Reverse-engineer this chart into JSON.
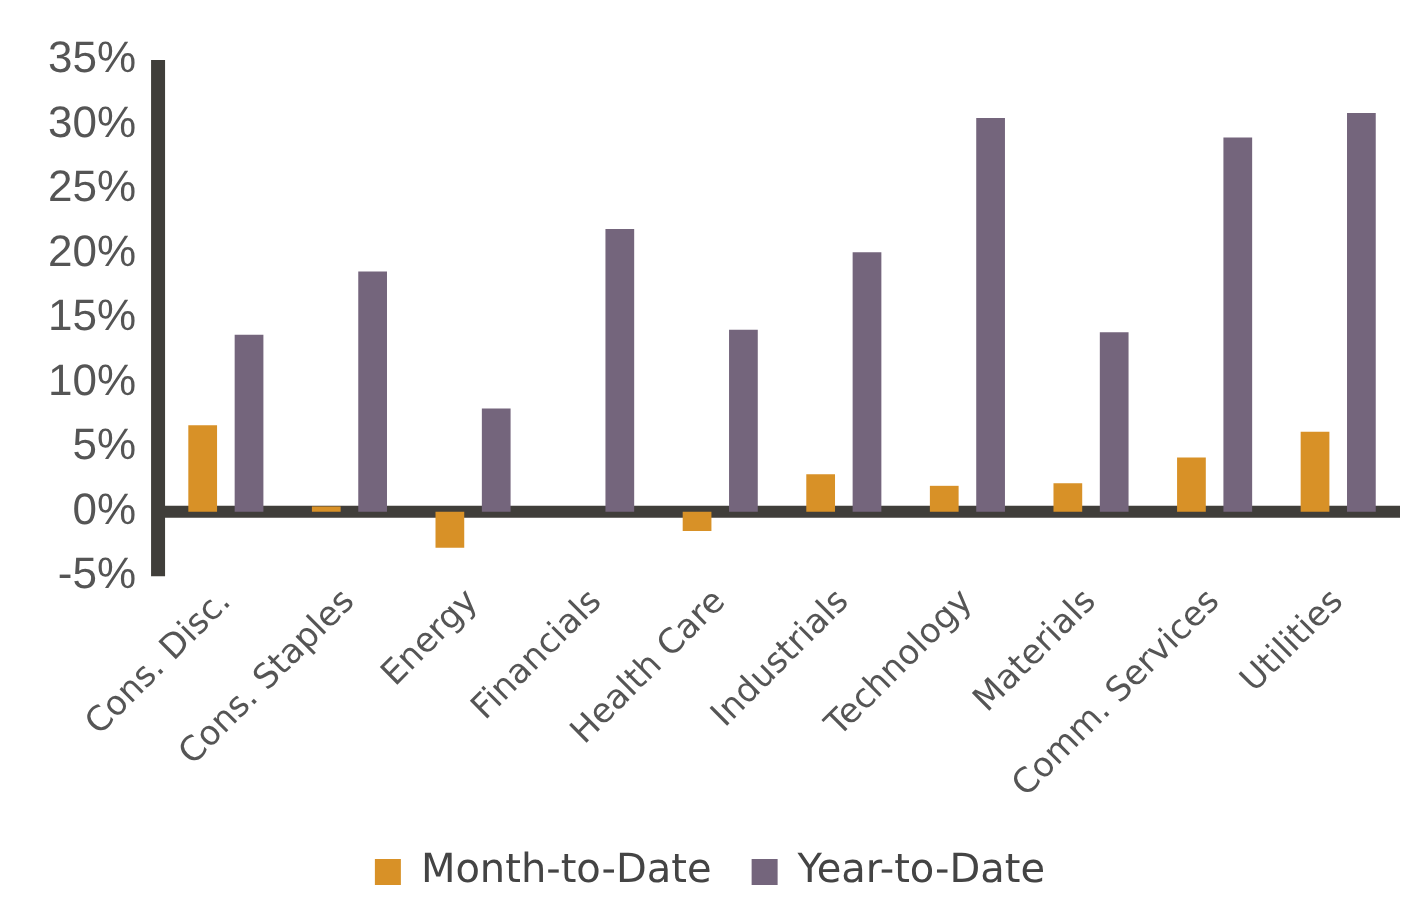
{
  "chart_data": {
    "type": "bar",
    "categories": [
      "Cons. Disc.",
      "Cons. Staples",
      "Energy",
      "Financials",
      "Health Care",
      "Industrials",
      "Technology",
      "Materials",
      "Comm. Services",
      "Utilities"
    ],
    "series": [
      {
        "name": "Month-to-Date",
        "color": "#d89127",
        "values": [
          6.7,
          0.4,
          -2.8,
          0,
          -1.5,
          2.9,
          2.0,
          2.2,
          4.2,
          6.2
        ]
      },
      {
        "name": "Year-to-Date",
        "color": "#74657c",
        "values": [
          13.7,
          18.6,
          8.0,
          21.9,
          14.1,
          20.1,
          30.5,
          13.9,
          29.0,
          30.9
        ]
      }
    ],
    "ylim": [
      -5,
      35
    ],
    "yticks": [
      {
        "value": -5,
        "label": "-5%"
      },
      {
        "value": 0,
        "label": "0%"
      },
      {
        "value": 5,
        "label": "5%"
      },
      {
        "value": 10,
        "label": "10%"
      },
      {
        "value": 15,
        "label": "15%"
      },
      {
        "value": 20,
        "label": "20%"
      },
      {
        "value": 25,
        "label": "25%"
      },
      {
        "value": 30,
        "label": "30%"
      },
      {
        "value": 35,
        "label": "35%"
      }
    ],
    "grid": false,
    "legend": "bottom"
  }
}
